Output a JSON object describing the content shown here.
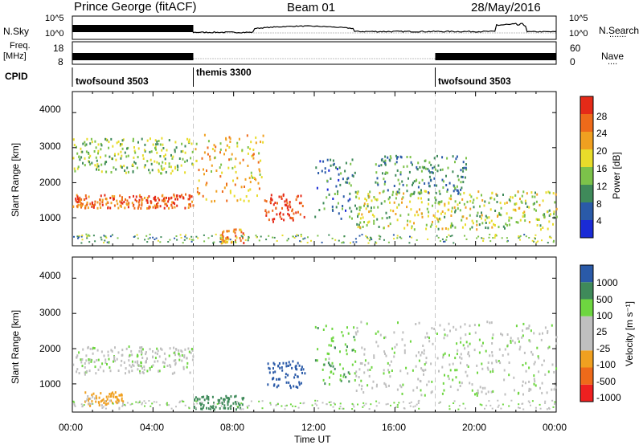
{
  "header": {
    "station": "Prince George (fitACF)",
    "beam": "Beam 01",
    "date": "28/May/2016"
  },
  "noise_panel": {
    "left_label": "N.Sky",
    "left_ticks": [
      "10^5",
      "10^0"
    ],
    "right_ticks": [
      "10^5",
      "10^0"
    ],
    "right_label": "N.Search",
    "right_legend": "......."
  },
  "freq_panel": {
    "left_label_1": "Freq.",
    "left_label_2": "[MHz]",
    "left_ticks": [
      "18",
      "8"
    ],
    "right_ticks": [
      "60",
      "0"
    ],
    "right_label": "Nave",
    "right_legend": "...."
  },
  "cpid": {
    "label": "CPID",
    "segments": [
      {
        "name": "twofsound 3503",
        "start_hour": 0
      },
      {
        "name": "themis 3300",
        "start_hour": 6
      },
      {
        "name": "twofsound 3503",
        "start_hour": 18
      }
    ]
  },
  "x_axis": {
    "label": "Time UT",
    "range_hours": [
      0,
      24
    ],
    "ticks": [
      "00:00",
      "04:00",
      "08:00",
      "12:00",
      "16:00",
      "20:00",
      "00:00"
    ]
  },
  "colors": {
    "power_scale": [
      "#1a2bd6",
      "#2a5aa8",
      "#3f8a5a",
      "#7cc24a",
      "#e8dc2a",
      "#f0a020",
      "#ee6a1a",
      "#e52a18"
    ],
    "velocity_scale": [
      "#ee2020",
      "#ee6a1a",
      "#f0a020",
      "#bfbfbf",
      "#bfbfbf",
      "#6ed640",
      "#3f8a5a",
      "#2a5aa8"
    ],
    "ground_scatter": "#bfbfbf"
  },
  "chart_data": [
    {
      "type": "heatmap",
      "panel": "power",
      "ylabel": "Slant Range [km]",
      "yticks": [
        "1000",
        "2000",
        "3000",
        "4000"
      ],
      "ylim": [
        200,
        4600
      ],
      "colorbar_label": "Power [dB]",
      "colorbar_ticks": [
        "4",
        "8",
        "12",
        "16",
        "20",
        "24",
        "28"
      ],
      "colorbar_range": [
        0,
        32
      ],
      "features": [
        {
          "t": [
            0.0,
            6.0
          ],
          "range_km": [
            1300,
            1700
          ],
          "power_db": 26
        },
        {
          "t": [
            0.0,
            6.0
          ],
          "range_km": [
            2300,
            3300
          ],
          "power_db": 14
        },
        {
          "t": [
            6.0,
            9.5
          ],
          "range_km": [
            1500,
            3400
          ],
          "power_db": 20
        },
        {
          "t": [
            7.3,
            8.5
          ],
          "range_km": [
            300,
            700
          ],
          "power_db": 24
        },
        {
          "t": [
            9.5,
            11.5
          ],
          "range_km": [
            900,
            1700
          ],
          "power_db": 30
        },
        {
          "t": [
            12.0,
            14.0
          ],
          "range_km": [
            1000,
            2700
          ],
          "power_db": 8
        },
        {
          "t": [
            14.0,
            24.0
          ],
          "range_km": [
            700,
            1800
          ],
          "power_db": 16
        },
        {
          "t": [
            15.0,
            19.5
          ],
          "range_km": [
            1700,
            2800
          ],
          "power_db": 10
        }
      ]
    },
    {
      "type": "heatmap",
      "panel": "velocity",
      "ylabel": "Slant Range [km]",
      "yticks": [
        "1000",
        "2000",
        "3000",
        "4000"
      ],
      "ylim": [
        200,
        4600
      ],
      "colorbar_label": "Velocity [m s⁻¹]",
      "colorbar_ticks": [
        "1000",
        "500",
        "100",
        "25",
        "-25",
        "-100",
        "-500",
        "-1000"
      ],
      "features": [
        {
          "t": [
            0.0,
            6.0
          ],
          "range_km": [
            1300,
            2100
          ],
          "velocity": 0
        },
        {
          "t": [
            0.5,
            2.5
          ],
          "range_km": [
            400,
            800
          ],
          "velocity": -150
        },
        {
          "t": [
            6.0,
            8.5
          ],
          "range_km": [
            300,
            700
          ],
          "velocity": 250
        },
        {
          "t": [
            9.5,
            11.5
          ],
          "range_km": [
            900,
            1700
          ],
          "velocity": 600
        },
        {
          "t": [
            12.0,
            14.0
          ],
          "range_km": [
            1000,
            2700
          ],
          "velocity": 80
        },
        {
          "t": [
            14.0,
            24.0
          ],
          "range_km": [
            700,
            2800
          ],
          "velocity": 0
        }
      ]
    }
  ]
}
